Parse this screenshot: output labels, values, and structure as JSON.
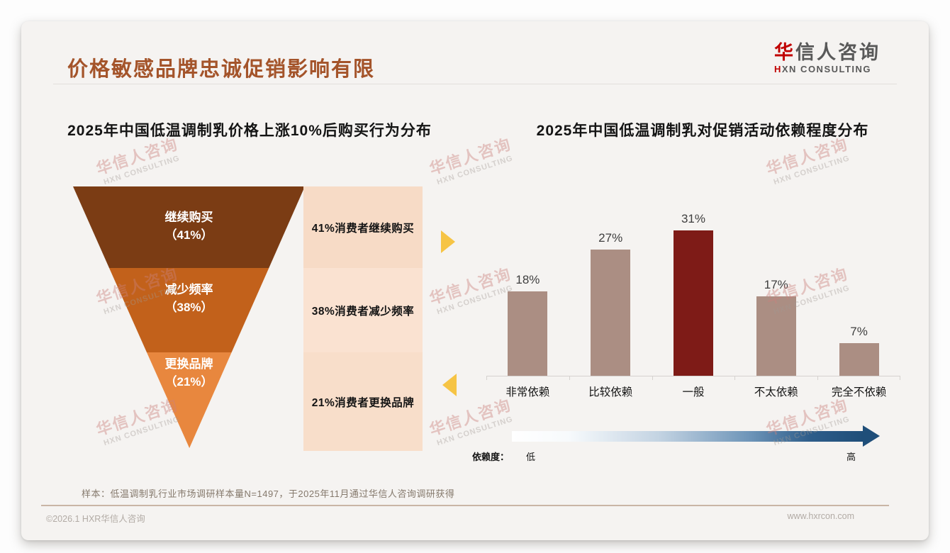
{
  "header": {
    "title": "价格敏感品牌忠诚促销影响有限",
    "logo": {
      "zh_accent": "华",
      "zh_rest": "信人咨询",
      "en_accent": "H",
      "en_rest": "XN CONSULTING"
    }
  },
  "chart_data": [
    {
      "type": "funnel",
      "title": "2025年中国低温调制乳价格上涨10%后购买行为分布",
      "stages": [
        {
          "label": "继续购买",
          "pct_label": "（41%）",
          "value": 41,
          "annotation": "41%消费者继续购买",
          "color": "#7b3c14",
          "panel_color": "#f7dbc6"
        },
        {
          "label": "减少频率",
          "pct_label": "（38%）",
          "value": 38,
          "annotation": "38%消费者减少频率",
          "color": "#c2611b",
          "panel_color": "#fae2d1"
        },
        {
          "label": "更换品牌",
          "pct_label": "（21%）",
          "value": 21,
          "annotation": "21%消费者更换品牌",
          "color": "#e8873e",
          "panel_color": "#f8deca"
        }
      ]
    },
    {
      "type": "bar",
      "title": "2025年中国低温调制乳对促销活动依赖程度分布",
      "categories": [
        "非常依赖",
        "比较依赖",
        "一般",
        "不太依赖",
        "完全不依赖"
      ],
      "values": [
        18,
        27,
        31,
        17,
        7
      ],
      "value_labels": [
        "18%",
        "27%",
        "31%",
        "17%",
        "7%"
      ],
      "ylim": [
        0,
        35
      ],
      "grid": false,
      "bar_color": "#ab8e83",
      "highlight_index": 2,
      "highlight_color": "#7e1b17",
      "axis": {
        "legend_label": "依赖度：",
        "low": "低",
        "high": "高"
      }
    }
  ],
  "footnote": "样本：低温调制乳行业市场调研样本量N=1497，于2025年11月通过华信人咨询调研获得",
  "footer": {
    "copyright": "©2026.1 HXR华信人咨询",
    "website": "www.hxrcon.com"
  },
  "watermark": {
    "line1": "华信人咨询",
    "line2": "HXN CONSULTING"
  },
  "colors": {
    "title": "#a4542a",
    "logo_red": "#c00000",
    "logo_gray": "#595959",
    "pointer_yellow": "#f6c445",
    "arrow_navy": "#1f4e79",
    "card_bg": "#f5f3f1"
  }
}
